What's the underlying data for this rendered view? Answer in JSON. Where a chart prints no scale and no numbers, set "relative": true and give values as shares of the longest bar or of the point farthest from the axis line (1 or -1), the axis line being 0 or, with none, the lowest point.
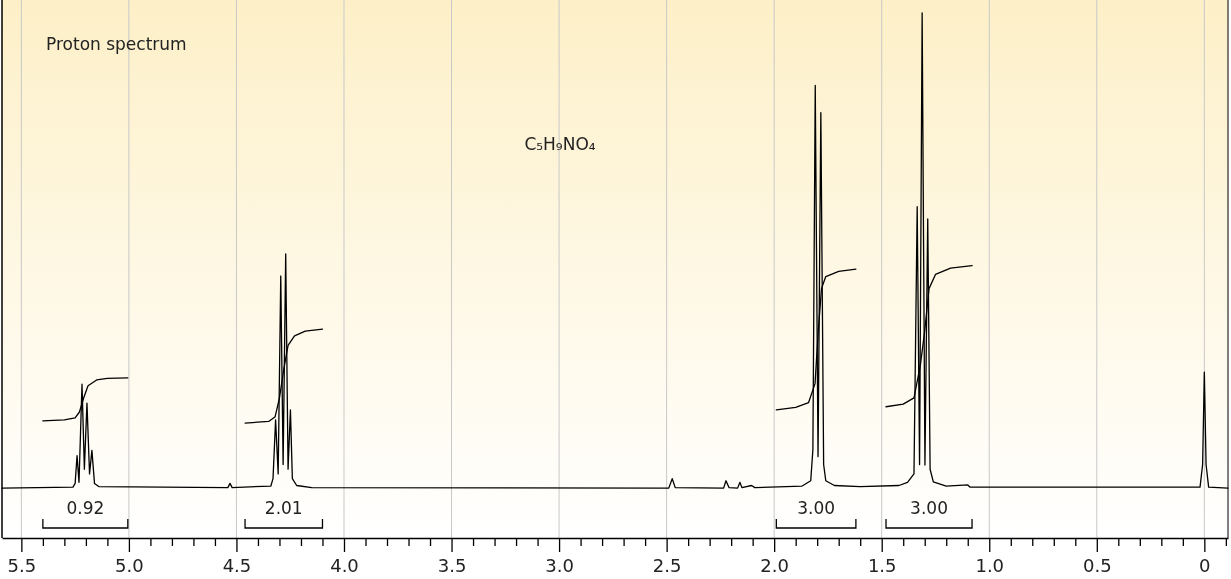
{
  "chart_data": {
    "type": "line",
    "title": "Proton spectrum",
    "subtitle": "C₅H₉NO₄",
    "relative": true,
    "grid": "x",
    "xlim": [
      5.59,
      -0.11
    ],
    "xticks": [
      {
        "value": 5.5,
        "label": "5.5"
      },
      {
        "value": 5.4,
        "label": null
      },
      {
        "value": 5.3,
        "label": null
      },
      {
        "value": 5.2,
        "label": null
      },
      {
        "value": 5.1,
        "label": null
      },
      {
        "value": 5,
        "label": "5.0"
      },
      {
        "value": 4.9,
        "label": null
      },
      {
        "value": 4.8,
        "label": null
      },
      {
        "value": 4.7,
        "label": null
      },
      {
        "value": 4.6,
        "label": null
      },
      {
        "value": 4.5,
        "label": "4.5"
      },
      {
        "value": 4.4,
        "label": null
      },
      {
        "value": 4.3,
        "label": null
      },
      {
        "value": 4.2,
        "label": null
      },
      {
        "value": 4.1,
        "label": null
      },
      {
        "value": 4,
        "label": "4.0"
      },
      {
        "value": 3.9,
        "label": null
      },
      {
        "value": 3.8,
        "label": null
      },
      {
        "value": 3.7,
        "label": null
      },
      {
        "value": 3.6,
        "label": null
      },
      {
        "value": 3.5,
        "label": "3.5"
      },
      {
        "value": 3.4,
        "label": null
      },
      {
        "value": 3.3,
        "label": null
      },
      {
        "value": 3.2,
        "label": null
      },
      {
        "value": 3.1,
        "label": null
      },
      {
        "value": 3,
        "label": "3.0"
      },
      {
        "value": 2.9,
        "label": null
      },
      {
        "value": 2.8,
        "label": null
      },
      {
        "value": 2.7,
        "label": null
      },
      {
        "value": 2.6,
        "label": null
      },
      {
        "value": 2.5,
        "label": "2.5"
      },
      {
        "value": 2.4,
        "label": null
      },
      {
        "value": 2.3,
        "label": null
      },
      {
        "value": 2.2,
        "label": null
      },
      {
        "value": 2.1,
        "label": null
      },
      {
        "value": 2,
        "label": "2.0"
      },
      {
        "value": 1.9,
        "label": null
      },
      {
        "value": 1.8,
        "label": null
      },
      {
        "value": 1.7,
        "label": null
      },
      {
        "value": 1.6,
        "label": null
      },
      {
        "value": 1.5,
        "label": "1.5"
      },
      {
        "value": 1.4,
        "label": null
      },
      {
        "value": 1.3,
        "label": null
      },
      {
        "value": 1.2,
        "label": null
      },
      {
        "value": 1.1,
        "label": null
      },
      {
        "value": 1,
        "label": "1.0"
      },
      {
        "value": 0.9,
        "label": null
      },
      {
        "value": 0.8,
        "label": null
      },
      {
        "value": 0.7,
        "label": null
      },
      {
        "value": 0.6,
        "label": null
      },
      {
        "value": 0.5,
        "label": "0.5"
      },
      {
        "value": 0.4,
        "label": null
      },
      {
        "value": 0.3,
        "label": null
      },
      {
        "value": 0.2,
        "label": null
      },
      {
        "value": 0.1,
        "label": null
      },
      {
        "value": 0,
        "label": "0"
      },
      {
        "value": -0.1,
        "label": null
      }
    ],
    "series": [
      {
        "type": "line",
        "color": "#000000",
        "x": [
          5.59,
          5.26,
          5.25,
          5.241,
          5.232,
          5.218,
          5.207,
          5.195,
          5.183,
          5.172,
          5.16,
          5.14,
          4.54,
          4.53,
          4.52,
          4.34,
          4.33,
          4.318,
          4.306,
          4.294,
          4.283,
          4.271,
          4.26,
          4.249,
          4.24,
          4.22,
          4.15,
          2.49,
          2.474,
          2.46,
          2.235,
          2.224,
          2.21,
          2.17,
          2.159,
          2.15,
          2.105,
          2.09,
          1.87,
          1.83,
          1.82,
          1.809,
          1.796,
          1.783,
          1.77,
          1.76,
          1.72,
          1.6,
          1.42,
          1.38,
          1.35,
          1.335,
          1.324,
          1.312,
          1.299,
          1.286,
          1.275,
          1.26,
          1.2,
          1.1,
          1.09,
          0.02,
          0.008,
          0,
          -0.008,
          -0.02,
          -0.11
        ],
        "values": [
          0.095,
          0.097,
          0.104,
          0.157,
          0.106,
          0.293,
          0.131,
          0.257,
          0.122,
          0.167,
          0.104,
          0.098,
          0.096,
          0.104,
          0.096,
          0.099,
          0.113,
          0.225,
          0.122,
          0.499,
          0.14,
          0.541,
          0.131,
          0.244,
          0.113,
          0.1,
          0.096,
          0.095,
          0.113,
          0.096,
          0.095,
          0.109,
          0.096,
          0.095,
          0.106,
          0.096,
          0.1,
          0.096,
          0.099,
          0.109,
          0.168,
          0.862,
          0.155,
          0.81,
          0.14,
          0.109,
          0.1,
          0.098,
          0.1,
          0.106,
          0.122,
          0.631,
          0.14,
          1,
          0.139,
          0.608,
          0.131,
          0.107,
          0.099,
          0.101,
          0.097,
          0.097,
          0.14,
          0.316,
          0.14,
          0.097,
          0.095
        ]
      },
      {
        "type": "line",
        "color": "#000000",
        "x": [
          5.4,
          5.3,
          5.25,
          5.23,
          5.21,
          5.19,
          5.15,
          5.1,
          5.005
        ],
        "values": [
          0.223,
          0.225,
          0.229,
          0.24,
          0.267,
          0.29,
          0.301,
          0.304,
          0.305
        ]
      },
      {
        "type": "line",
        "color": "#000000",
        "x": [
          4.46,
          4.35,
          4.32,
          4.3,
          4.28,
          4.26,
          4.23,
          4.18,
          4.1
        ],
        "values": [
          0.219,
          0.222,
          0.231,
          0.267,
          0.321,
          0.367,
          0.385,
          0.394,
          0.398
        ]
      },
      {
        "type": "line",
        "color": "#000000",
        "x": [
          1.99,
          1.9,
          1.84,
          1.81,
          1.795,
          1.78,
          1.76,
          1.7,
          1.62
        ],
        "values": [
          0.244,
          0.249,
          0.258,
          0.294,
          0.394,
          0.475,
          0.498,
          0.508,
          0.512
        ]
      },
      {
        "type": "line",
        "color": "#000000",
        "x": [
          1.48,
          1.4,
          1.35,
          1.32,
          1.3,
          1.28,
          1.25,
          1.18,
          1.08
        ],
        "values": [
          0.25,
          0.255,
          0.267,
          0.33,
          0.394,
          0.475,
          0.502,
          0.514,
          0.519
        ]
      }
    ],
    "annotations": [
      "0.92",
      "2.01",
      "3.00",
      "3.00"
    ]
  }
}
